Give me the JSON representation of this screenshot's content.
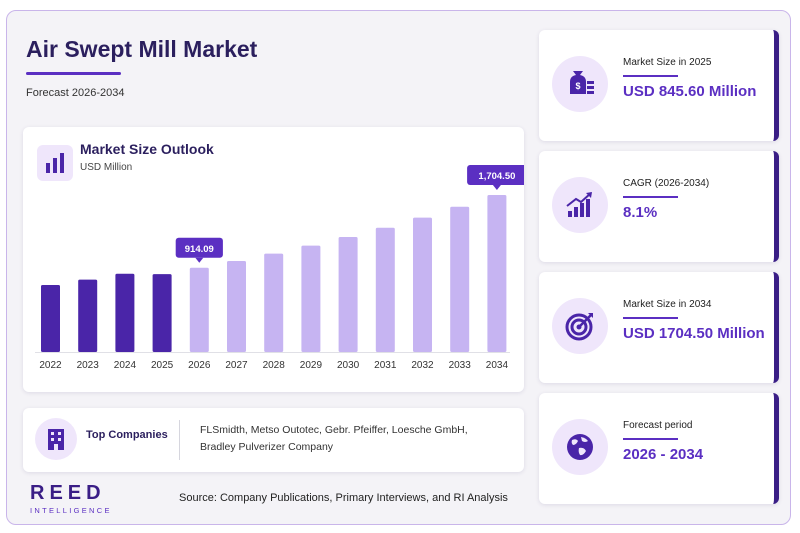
{
  "header": {
    "title": "Air Swept Mill Market",
    "subtitle": "Forecast 2026-2034"
  },
  "chart_card": {
    "heading": "Market Size Outlook",
    "unit": "USD Million"
  },
  "chart_data": {
    "type": "bar",
    "title": "Market Size Outlook",
    "ylabel": "USD Million",
    "categories": [
      "2022",
      "2023",
      "2024",
      "2025",
      "2026",
      "2027",
      "2028",
      "2029",
      "2030",
      "2031",
      "2032",
      "2033",
      "2034"
    ],
    "values": [
      727.0,
      786.0,
      850.0,
      845.6,
      914.09,
      988.0,
      1068.0,
      1155.0,
      1248.0,
      1349.0,
      1459.0,
      1577.0,
      1704.5
    ],
    "historical_color": "#4a25a8",
    "forecast_color": "#c6b4f2",
    "callouts": [
      {
        "category": "2026",
        "label": "914.09"
      },
      {
        "category": "2034",
        "label": "1,704.50"
      }
    ],
    "grid": false,
    "legend": "none"
  },
  "companies": {
    "label": "Top Companies",
    "list": "FLSmidth, Metso Outotec, Gebr. Pfeiffer, Loesche GmbH, Bradley Pulverizer Company"
  },
  "brand": {
    "name": "REED",
    "tagline": "INTELLIGENCE"
  },
  "source": "Source: Company Publications, Primary Interviews, and RI Analysis",
  "stats": [
    {
      "label": "Market Size in 2025",
      "value": "USD 845.60 Million",
      "icon": "money-bag-icon"
    },
    {
      "label": "CAGR (2026-2034)",
      "value": "8.1%",
      "icon": "growth-chart-icon"
    },
    {
      "label": "Market Size in 2034",
      "value": "USD 1704.50 Million",
      "icon": "target-icon"
    },
    {
      "label": "Forecast period",
      "value": "2026 - 2034",
      "icon": "globe-icon"
    }
  ],
  "colors": {
    "accent": "#5b2fc2",
    "dark": "#3a1e86",
    "light_bg": "#efe6fb"
  }
}
